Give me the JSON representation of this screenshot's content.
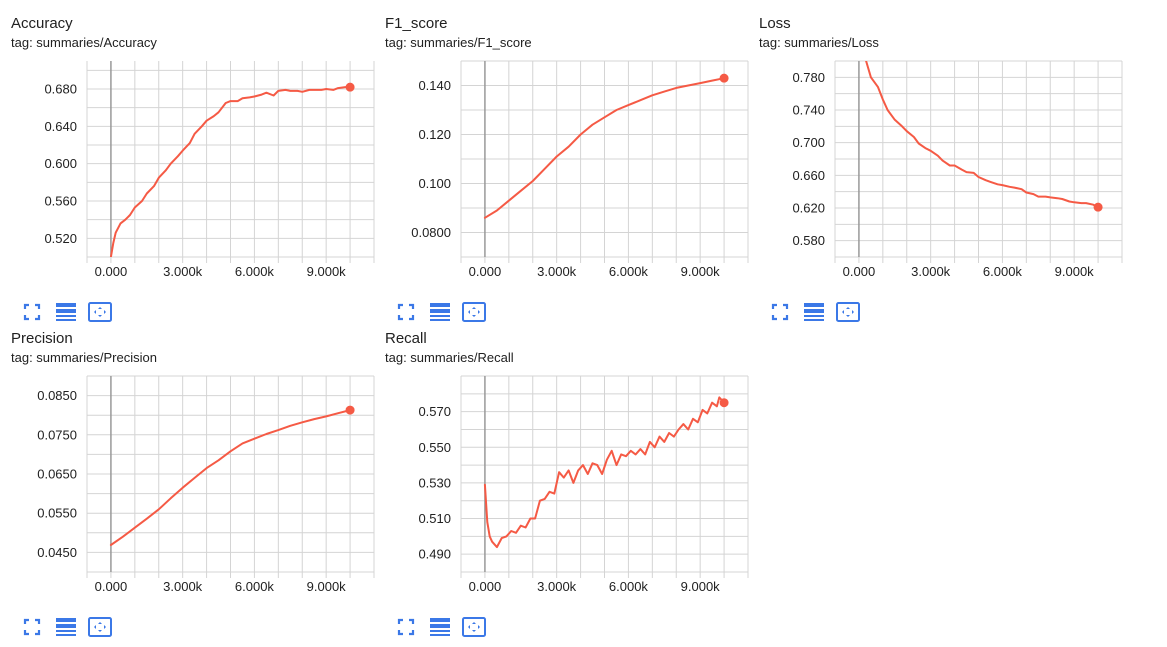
{
  "colors": {
    "series": "#f55a45",
    "grid": "#d4d4d4",
    "zero_line": "#999999",
    "axis_text": "#212121",
    "toolbar_icon": "#3b78e7"
  },
  "toolbar_icons": [
    "fullscreen-icon",
    "toggle-log-scale-icon",
    "fit-domain-icon"
  ],
  "chart_data": [
    {
      "type": "line",
      "title": "Accuracy",
      "tag": "tag: summaries/Accuracy",
      "xlim": [
        -1000,
        11000
      ],
      "ylim": [
        0.5,
        0.71
      ],
      "x_ticks": [
        0,
        3000,
        6000,
        9000
      ],
      "x_tick_labels": [
        "0.000",
        "3.000k",
        "6.000k",
        "9.000k"
      ],
      "y_ticks": [
        0.52,
        0.56,
        0.6,
        0.64,
        0.68
      ],
      "y_tick_labels": [
        "0.520",
        "0.560",
        "0.600",
        "0.640",
        "0.680"
      ],
      "grid": true,
      "series": [
        {
          "x": [
            0,
            100,
            200,
            400,
            600,
            800,
            1000,
            1300,
            1500,
            1800,
            2000,
            2300,
            2500,
            2800,
            3000,
            3300,
            3500,
            3800,
            4000,
            4300,
            4500,
            4800,
            5000,
            5300,
            5500,
            5800,
            6000,
            6300,
            6500,
            6800,
            7000,
            7300,
            7500,
            7800,
            8000,
            8300,
            8500,
            8800,
            9000,
            9300,
            9500,
            9800,
            10000
          ],
          "y": [
            0.5,
            0.515,
            0.526,
            0.536,
            0.54,
            0.545,
            0.553,
            0.56,
            0.568,
            0.576,
            0.585,
            0.593,
            0.6,
            0.608,
            0.614,
            0.622,
            0.632,
            0.64,
            0.646,
            0.651,
            0.655,
            0.665,
            0.667,
            0.667,
            0.67,
            0.671,
            0.672,
            0.674,
            0.676,
            0.673,
            0.678,
            0.679,
            0.678,
            0.678,
            0.677,
            0.679,
            0.679,
            0.679,
            0.68,
            0.679,
            0.681,
            0.682,
            0.682
          ]
        }
      ]
    },
    {
      "type": "line",
      "title": "F1_score",
      "tag": "tag: summaries/F1_score",
      "xlim": [
        -1000,
        11000
      ],
      "ylim": [
        0.07,
        0.15
      ],
      "x_ticks": [
        0,
        3000,
        6000,
        9000
      ],
      "x_tick_labels": [
        "0.000",
        "3.000k",
        "6.000k",
        "9.000k"
      ],
      "y_ticks": [
        0.08,
        0.1,
        0.12,
        0.14
      ],
      "y_tick_labels": [
        "0.0800",
        "0.100",
        "0.120",
        "0.140"
      ],
      "grid": true,
      "series": [
        {
          "x": [
            0,
            500,
            1000,
            1500,
            2000,
            2500,
            3000,
            3500,
            4000,
            4500,
            5000,
            5500,
            6000,
            6500,
            7000,
            7500,
            8000,
            8500,
            9000,
            9500,
            10000
          ],
          "y": [
            0.086,
            0.089,
            0.093,
            0.097,
            0.101,
            0.106,
            0.111,
            0.115,
            0.12,
            0.124,
            0.127,
            0.13,
            0.132,
            0.134,
            0.136,
            0.1375,
            0.139,
            0.14,
            0.141,
            0.142,
            0.143
          ]
        }
      ]
    },
    {
      "type": "line",
      "title": "Loss",
      "tag": "tag: summaries/Loss",
      "xlim": [
        -1000,
        11000
      ],
      "ylim": [
        0.56,
        0.8
      ],
      "x_ticks": [
        0,
        3000,
        6000,
        9000
      ],
      "x_tick_labels": [
        "0.000",
        "3.000k",
        "6.000k",
        "9.000k"
      ],
      "y_ticks": [
        0.58,
        0.62,
        0.66,
        0.7,
        0.74,
        0.78
      ],
      "y_tick_labels": [
        "0.580",
        "0.620",
        "0.660",
        "0.700",
        "0.740",
        "0.780"
      ],
      "grid": true,
      "series": [
        {
          "x": [
            300,
            500,
            800,
            1000,
            1200,
            1500,
            1800,
            2000,
            2300,
            2500,
            2800,
            3000,
            3300,
            3500,
            3800,
            4000,
            4300,
            4500,
            4800,
            5000,
            5300,
            5500,
            5800,
            6000,
            6300,
            6500,
            6800,
            7000,
            7300,
            7500,
            7800,
            8000,
            8300,
            8500,
            8800,
            9000,
            9300,
            9500,
            9800,
            10000
          ],
          "y": [
            0.8,
            0.78,
            0.768,
            0.753,
            0.74,
            0.728,
            0.72,
            0.714,
            0.707,
            0.699,
            0.693,
            0.69,
            0.684,
            0.678,
            0.672,
            0.672,
            0.667,
            0.664,
            0.663,
            0.658,
            0.654,
            0.652,
            0.649,
            0.648,
            0.646,
            0.645,
            0.643,
            0.639,
            0.637,
            0.634,
            0.634,
            0.633,
            0.632,
            0.631,
            0.628,
            0.627,
            0.626,
            0.626,
            0.624,
            0.621
          ]
        }
      ]
    },
    {
      "type": "line",
      "title": "Precision",
      "tag": "tag: summaries/Precision",
      "xlim": [
        -1000,
        11000
      ],
      "ylim": [
        0.04,
        0.09
      ],
      "x_ticks": [
        0,
        3000,
        6000,
        9000
      ],
      "x_tick_labels": [
        "0.000",
        "3.000k",
        "6.000k",
        "9.000k"
      ],
      "y_ticks": [
        0.045,
        0.055,
        0.065,
        0.075,
        0.085
      ],
      "y_tick_labels": [
        "0.0450",
        "0.0550",
        "0.0650",
        "0.0750",
        "0.0850"
      ],
      "grid": true,
      "series": [
        {
          "x": [
            0,
            500,
            1000,
            1500,
            2000,
            2500,
            3000,
            3500,
            4000,
            4500,
            5000,
            5500,
            6000,
            6500,
            7000,
            7500,
            8000,
            8500,
            9000,
            9500,
            10000
          ],
          "y": [
            0.0469,
            0.049,
            0.0513,
            0.0536,
            0.056,
            0.0588,
            0.0615,
            0.064,
            0.0665,
            0.0685,
            0.0708,
            0.0728,
            0.074,
            0.0752,
            0.0762,
            0.0773,
            0.0782,
            0.079,
            0.0797,
            0.0805,
            0.0813
          ]
        }
      ]
    },
    {
      "type": "line",
      "title": "Recall",
      "tag": "tag: summaries/Recall",
      "xlim": [
        -1000,
        11000
      ],
      "ylim": [
        0.48,
        0.59
      ],
      "x_ticks": [
        0,
        3000,
        6000,
        9000
      ],
      "x_tick_labels": [
        "0.000",
        "3.000k",
        "6.000k",
        "9.000k"
      ],
      "y_ticks": [
        0.49,
        0.51,
        0.53,
        0.55,
        0.57
      ],
      "y_tick_labels": [
        "0.490",
        "0.510",
        "0.530",
        "0.550",
        "0.570"
      ],
      "grid": true,
      "series": [
        {
          "x": [
            0,
            100,
            200,
            300,
            500,
            700,
            900,
            1100,
            1300,
            1500,
            1700,
            1900,
            2100,
            2300,
            2500,
            2700,
            2900,
            3100,
            3300,
            3500,
            3700,
            3900,
            4100,
            4300,
            4500,
            4700,
            4900,
            5100,
            5300,
            5500,
            5700,
            5900,
            6100,
            6300,
            6500,
            6700,
            6900,
            7100,
            7300,
            7500,
            7700,
            7900,
            8100,
            8300,
            8500,
            8700,
            8900,
            9100,
            9300,
            9500,
            9700,
            9800,
            10000
          ],
          "y": [
            0.529,
            0.508,
            0.5,
            0.497,
            0.494,
            0.499,
            0.5,
            0.503,
            0.502,
            0.506,
            0.505,
            0.51,
            0.51,
            0.52,
            0.521,
            0.525,
            0.524,
            0.536,
            0.533,
            0.537,
            0.53,
            0.537,
            0.54,
            0.535,
            0.541,
            0.54,
            0.535,
            0.543,
            0.548,
            0.54,
            0.546,
            0.545,
            0.548,
            0.546,
            0.549,
            0.546,
            0.553,
            0.55,
            0.556,
            0.553,
            0.558,
            0.556,
            0.56,
            0.563,
            0.56,
            0.566,
            0.564,
            0.571,
            0.569,
            0.575,
            0.573,
            0.578,
            0.575
          ]
        }
      ]
    }
  ]
}
